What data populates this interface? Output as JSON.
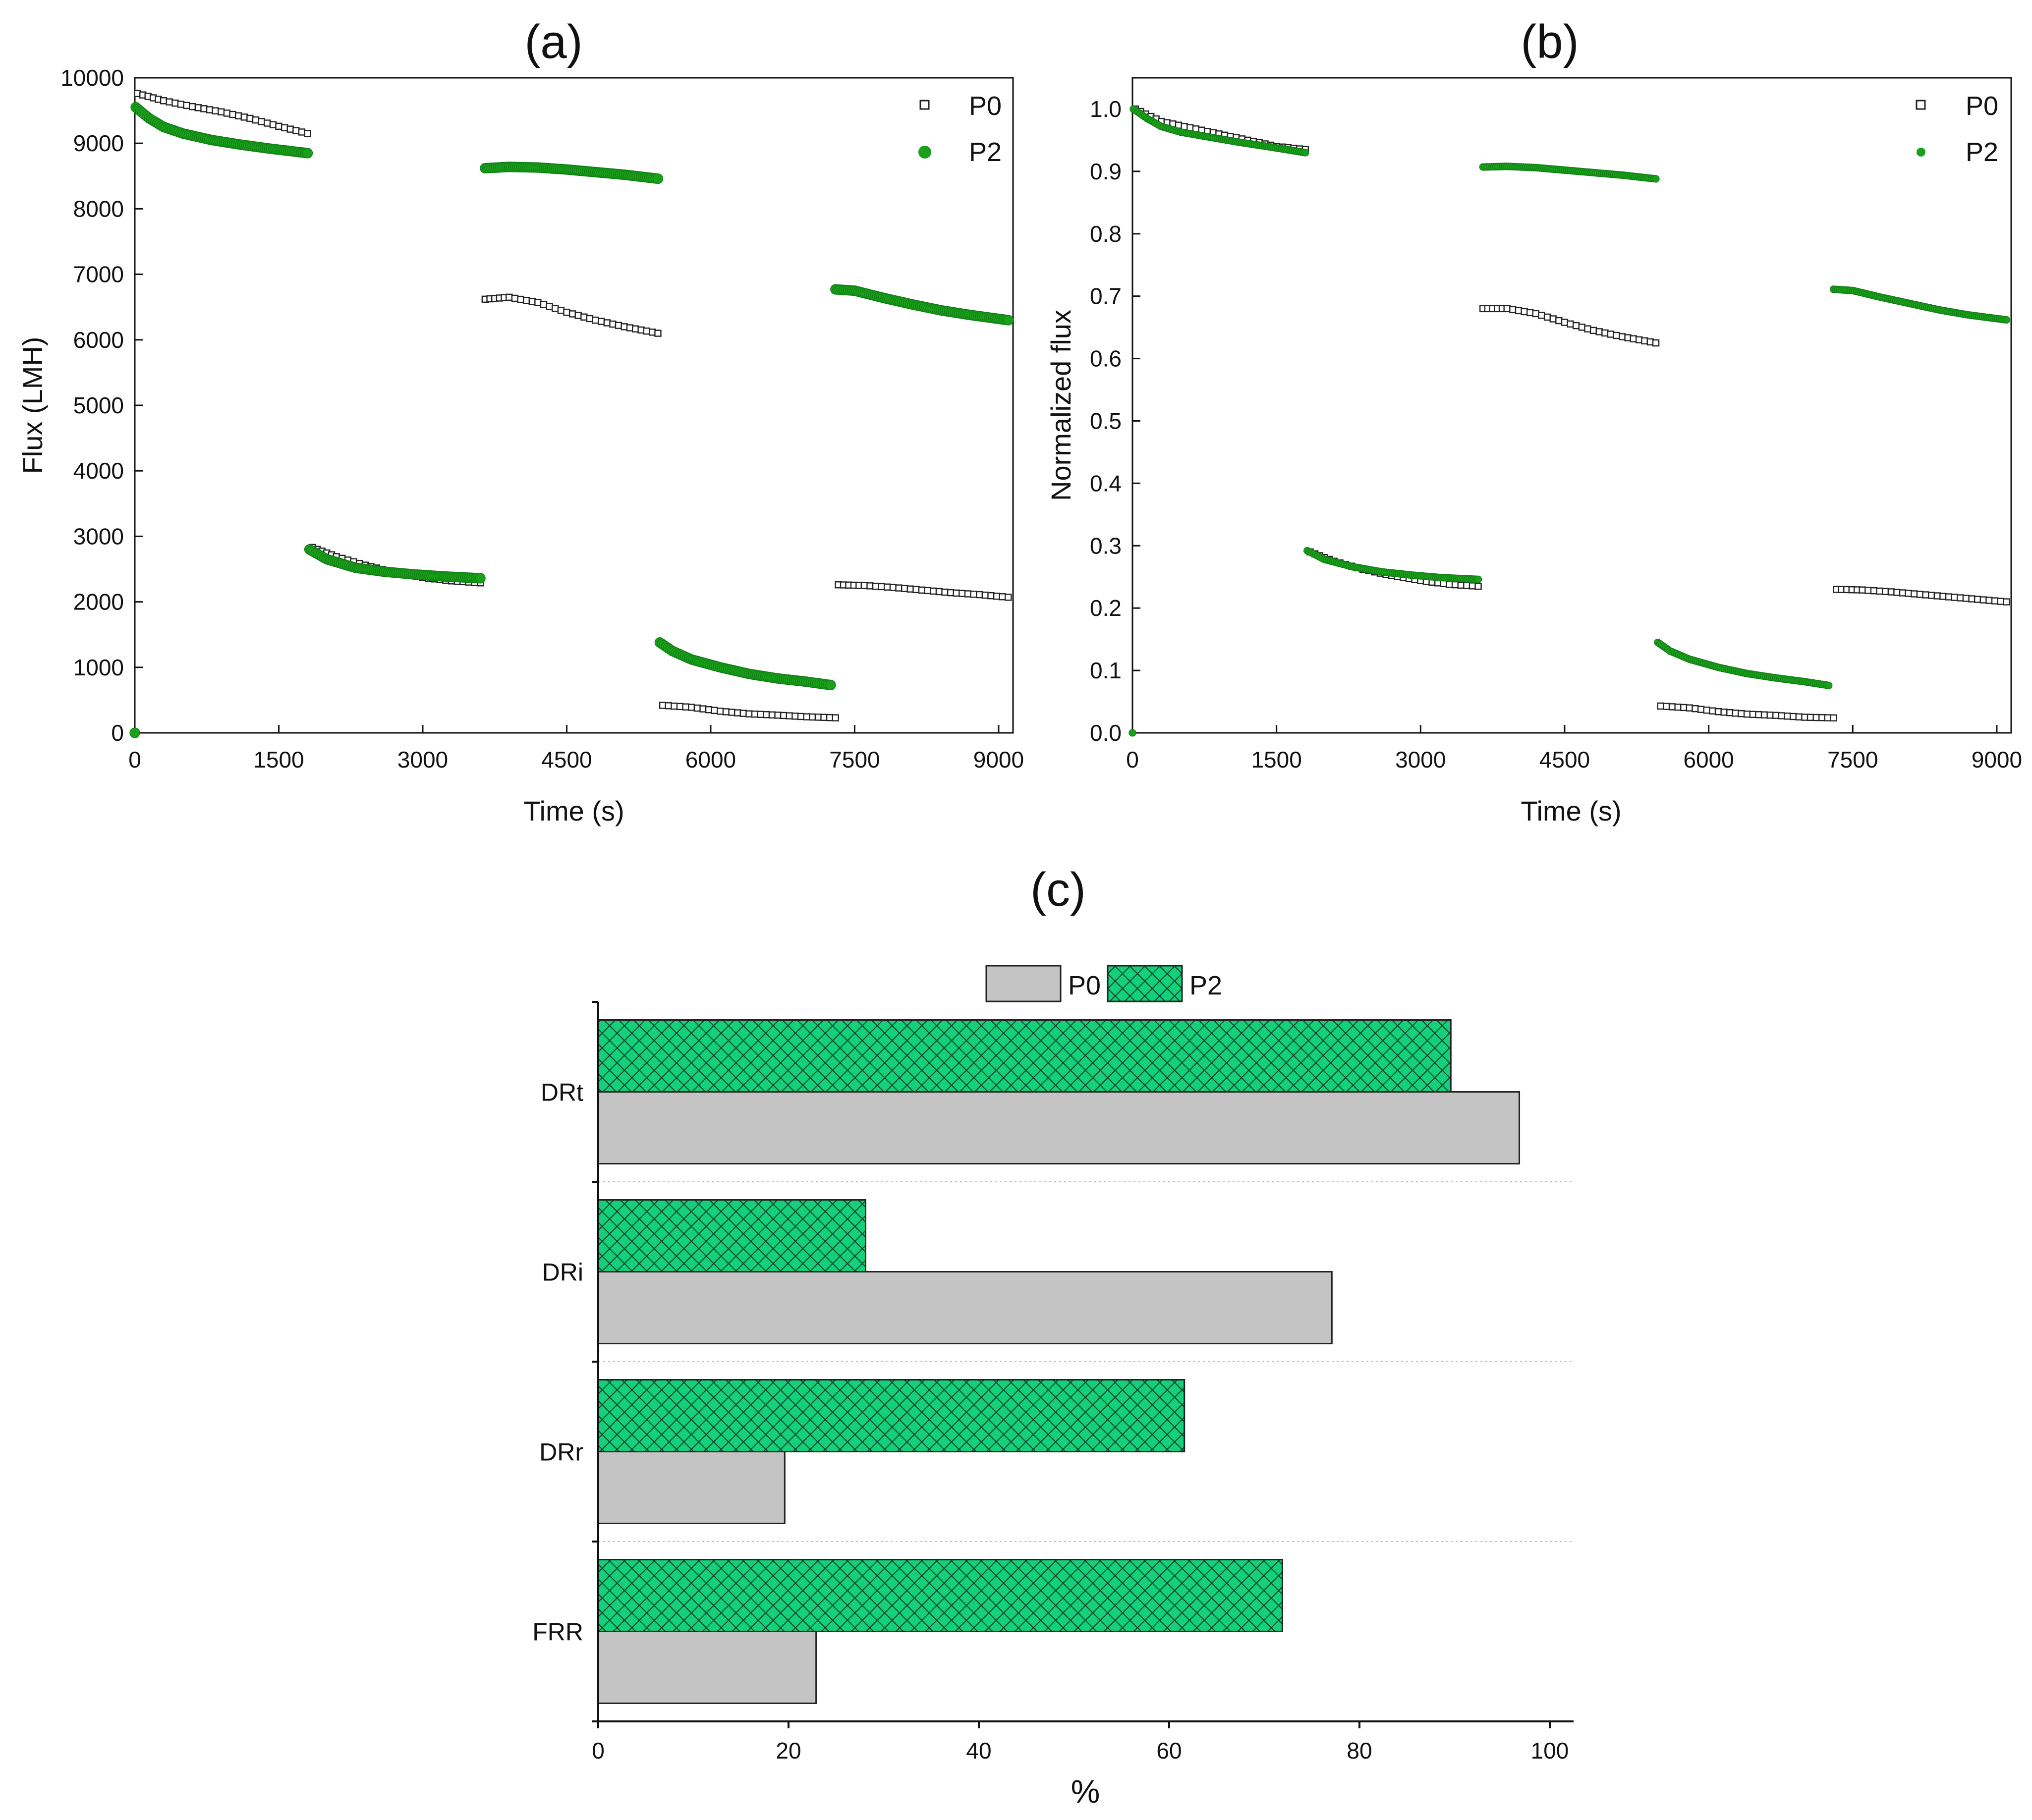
{
  "colors": {
    "p0_marker": "#222222",
    "p2_marker": "#1aa01a",
    "p0_bar": "#c4c4c4",
    "p2_bar": "#14d07a",
    "axis": "#111111",
    "grid": "#bbbbbb"
  },
  "chart_data": [
    {
      "id": "a",
      "type": "scatter",
      "title": "(a)",
      "xlabel": "Time (s)",
      "ylabel": "Flux (LMH)",
      "xlim": [
        0,
        9150
      ],
      "ylim": [
        0,
        10000
      ],
      "xticks": [
        0,
        1500,
        3000,
        4500,
        6000,
        7500,
        9000
      ],
      "yticks": [
        0,
        1000,
        2000,
        3000,
        4000,
        5000,
        6000,
        7000,
        8000,
        9000,
        10000
      ],
      "legend": [
        "P0",
        "P2"
      ],
      "legend_position": "top-right",
      "series": [
        {
          "name": "P0",
          "marker": "open-square",
          "segments": [
            [
              [
                30,
                9760
              ],
              [
                300,
                9650
              ],
              [
                600,
                9560
              ],
              [
                900,
                9480
              ],
              [
                1200,
                9380
              ],
              [
                1500,
                9260
              ],
              [
                1800,
                9150
              ]
            ],
            [
              [
                1850,
                2830
              ],
              [
                2100,
                2690
              ],
              [
                2400,
                2560
              ],
              [
                2700,
                2450
              ],
              [
                3000,
                2370
              ],
              [
                3300,
                2320
              ],
              [
                3600,
                2290
              ]
            ],
            [
              [
                3650,
                6620
              ],
              [
                3900,
                6650
              ],
              [
                4200,
                6570
              ],
              [
                4500,
                6420
              ],
              [
                4800,
                6300
              ],
              [
                5100,
                6200
              ],
              [
                5450,
                6100
              ]
            ],
            [
              [
                5500,
                420
              ],
              [
                5800,
                390
              ],
              [
                6100,
                330
              ],
              [
                6400,
                290
              ],
              [
                6700,
                270
              ],
              [
                7000,
                245
              ],
              [
                7300,
                230
              ]
            ],
            [
              [
                7330,
                2260
              ],
              [
                7600,
                2250
              ],
              [
                7900,
                2220
              ],
              [
                8200,
                2180
              ],
              [
                8500,
                2140
              ],
              [
                8800,
                2110
              ],
              [
                9100,
                2070
              ]
            ]
          ]
        },
        {
          "name": "P2",
          "marker": "filled-circle",
          "segments": [
            [
              [
                0,
                0
              ]
            ],
            [
              [
                10,
                9550
              ],
              [
                150,
                9380
              ],
              [
                300,
                9250
              ],
              [
                500,
                9150
              ],
              [
                800,
                9050
              ],
              [
                1100,
                8980
              ],
              [
                1400,
                8920
              ],
              [
                1800,
                8850
              ]
            ],
            [
              [
                1820,
                2800
              ],
              [
                2000,
                2650
              ],
              [
                2300,
                2520
              ],
              [
                2600,
                2460
              ],
              [
                2900,
                2420
              ],
              [
                3200,
                2390
              ],
              [
                3600,
                2360
              ]
            ],
            [
              [
                3650,
                8620
              ],
              [
                3900,
                8640
              ],
              [
                4200,
                8630
              ],
              [
                4500,
                8600
              ],
              [
                4800,
                8560
              ],
              [
                5100,
                8520
              ],
              [
                5450,
                8460
              ]
            ],
            [
              [
                5470,
                1380
              ],
              [
                5600,
                1250
              ],
              [
                5800,
                1120
              ],
              [
                6100,
                1000
              ],
              [
                6400,
                900
              ],
              [
                6700,
                830
              ],
              [
                7000,
                780
              ],
              [
                7250,
                730
              ]
            ],
            [
              [
                7300,
                6770
              ],
              [
                7500,
                6750
              ],
              [
                7800,
                6640
              ],
              [
                8100,
                6540
              ],
              [
                8400,
                6450
              ],
              [
                8700,
                6380
              ],
              [
                9100,
                6300
              ]
            ]
          ]
        }
      ]
    },
    {
      "id": "b",
      "type": "scatter",
      "title": "(b)",
      "xlabel": "Time (s)",
      "ylabel": "Normalized flux",
      "xlim": [
        0,
        9150
      ],
      "ylim": [
        0,
        1.05
      ],
      "xticks": [
        0,
        1500,
        3000,
        4500,
        6000,
        7500,
        9000
      ],
      "yticks": [
        "0.0",
        "0.1",
        "0.2",
        "0.3",
        "0.4",
        "0.5",
        "0.6",
        "0.7",
        "0.8",
        "0.9",
        "1.0"
      ],
      "legend": [
        "P0",
        "P2"
      ],
      "legend_position": "top-right",
      "series": [
        {
          "name": "P0",
          "marker": "open-square",
          "segments": [
            [
              [
                30,
                1.0
              ],
              [
                300,
                0.98
              ],
              [
                600,
                0.97
              ],
              [
                900,
                0.96
              ],
              [
                1200,
                0.95
              ],
              [
                1500,
                0.94
              ],
              [
                1800,
                0.935
              ]
            ],
            [
              [
                1850,
                0.29
              ],
              [
                2100,
                0.275
              ],
              [
                2400,
                0.262
              ],
              [
                2700,
                0.252
              ],
              [
                3000,
                0.244
              ],
              [
                3300,
                0.238
              ],
              [
                3600,
                0.235
              ]
            ],
            [
              [
                3650,
                0.68
              ],
              [
                3900,
                0.68
              ],
              [
                4200,
                0.672
              ],
              [
                4500,
                0.658
              ],
              [
                4800,
                0.645
              ],
              [
                5100,
                0.635
              ],
              [
                5450,
                0.625
              ]
            ],
            [
              [
                5500,
                0.043
              ],
              [
                5800,
                0.04
              ],
              [
                6100,
                0.034
              ],
              [
                6400,
                0.03
              ],
              [
                6700,
                0.028
              ],
              [
                7000,
                0.025
              ],
              [
                7300,
                0.024
              ]
            ],
            [
              [
                7330,
                0.23
              ],
              [
                7600,
                0.229
              ],
              [
                7900,
                0.226
              ],
              [
                8200,
                0.222
              ],
              [
                8500,
                0.218
              ],
              [
                8800,
                0.214
              ],
              [
                9100,
                0.21
              ]
            ]
          ]
        },
        {
          "name": "P2",
          "marker": "small-filled-circle",
          "segments": [
            [
              [
                0,
                0
              ]
            ],
            [
              [
                10,
                1.0
              ],
              [
                150,
                0.985
              ],
              [
                300,
                0.972
              ],
              [
                500,
                0.963
              ],
              [
                800,
                0.955
              ],
              [
                1100,
                0.947
              ],
              [
                1400,
                0.94
              ],
              [
                1800,
                0.93
              ]
            ],
            [
              [
                1820,
                0.292
              ],
              [
                2000,
                0.278
              ],
              [
                2300,
                0.266
              ],
              [
                2600,
                0.258
              ],
              [
                2900,
                0.253
              ],
              [
                3200,
                0.249
              ],
              [
                3600,
                0.246
              ]
            ],
            [
              [
                3650,
                0.907
              ],
              [
                3900,
                0.908
              ],
              [
                4200,
                0.906
              ],
              [
                4500,
                0.902
              ],
              [
                4800,
                0.898
              ],
              [
                5100,
                0.894
              ],
              [
                5450,
                0.888
              ]
            ],
            [
              [
                5470,
                0.145
              ],
              [
                5600,
                0.131
              ],
              [
                5800,
                0.118
              ],
              [
                6100,
                0.105
              ],
              [
                6400,
                0.095
              ],
              [
                6700,
                0.088
              ],
              [
                7000,
                0.082
              ],
              [
                7250,
                0.076
              ]
            ],
            [
              [
                7300,
                0.711
              ],
              [
                7500,
                0.709
              ],
              [
                7800,
                0.698
              ],
              [
                8100,
                0.688
              ],
              [
                8400,
                0.678
              ],
              [
                8700,
                0.67
              ],
              [
                9100,
                0.662
              ]
            ]
          ]
        }
      ]
    },
    {
      "id": "c",
      "type": "bar",
      "orientation": "horizontal",
      "title": "(c)",
      "xlabel": "%",
      "ylabel": "",
      "xlim": [
        0,
        102
      ],
      "xticks": [
        0,
        20,
        40,
        60,
        80,
        100
      ],
      "categories": [
        "DRt",
        "DRi",
        "DRr",
        "FRR"
      ],
      "series": [
        {
          "name": "P0",
          "pattern": "solid",
          "values": [
            96.8,
            77.1,
            19.6,
            22.9
          ]
        },
        {
          "name": "P2",
          "pattern": "crosshatch",
          "values": [
            89.6,
            28.1,
            61.6,
            71.9
          ]
        }
      ],
      "legend": [
        "P0",
        "P2"
      ],
      "legend_position": "top-center",
      "grid": "dotted-horizontal"
    }
  ]
}
